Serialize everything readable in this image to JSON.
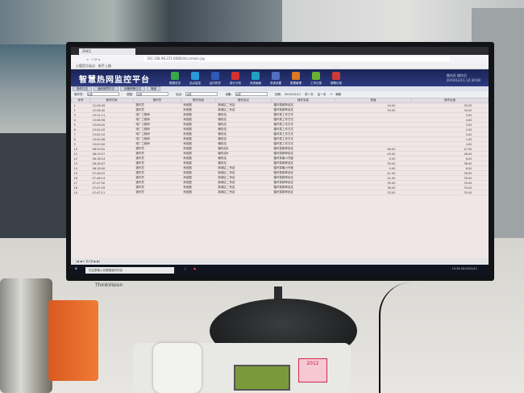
{
  "browser": {
    "tab_title": "ZHCC",
    "url": "192.168.98.251:8080/zhcc/main.jsp",
    "bookmarks": [
      "火狐官方站点",
      "新手上路"
    ]
  },
  "app": {
    "title": "智慧热网监控平台",
    "nav": [
      {
        "label": "数据总览",
        "color": "#3aa64a"
      },
      {
        "label": "站点监控",
        "color": "#2a9ad8"
      },
      {
        "label": "运行历史",
        "color": "#3058b8"
      },
      {
        "label": "统计分析",
        "color": "#d83030"
      },
      {
        "label": "系统画面",
        "color": "#20a0c0"
      },
      {
        "label": "系统设置",
        "color": "#5070c0"
      },
      {
        "label": "数据管理",
        "color": "#e07820"
      },
      {
        "label": "工作记录",
        "color": "#6ab030"
      },
      {
        "label": "报警记录",
        "color": "#d03838"
      }
    ],
    "user": "操作员 操作员",
    "datetime": "2019/12/11 12:30:00"
  },
  "subtabs": [
    "操作日志",
    "通信故障日志",
    "设备报警日志",
    "等级"
  ],
  "filters": {
    "operator_label": "操作员:",
    "operator": "全部",
    "scope_label": "范围:",
    "scope": "全部",
    "site_label": "站点:",
    "site": "全部",
    "device_label": "设备:",
    "device": "全部",
    "date_label": "日期:",
    "date": "2019/12/11",
    "prev": "前一天",
    "next": "后一天",
    "refresh": "刷新"
  },
  "table": {
    "columns": [
      "序号",
      "操作时间",
      "操作员",
      "操作页面",
      "操作站点",
      "操作变量",
      "原值",
      "操作后值"
    ],
    "rows": [
      [
        "1",
        "12:26:49",
        "操作员",
        "系统图",
        "新城区二号站",
        "循环泵频率设定",
        "34.00",
        "35.00"
      ],
      [
        "2",
        "12:26:42",
        "操作员",
        "系统图",
        "新城区二号站",
        "循环泵频率设定",
        "33.00",
        "34.00"
      ],
      [
        "3",
        "15:12:11",
        "电厂工程师",
        "系统图",
        "输热站",
        "循环泵工作方式",
        "",
        "3.00"
      ],
      [
        "4",
        "15:08:56",
        "电厂工程师",
        "系统图",
        "输热站",
        "循环泵工作方式",
        "",
        "4.00"
      ],
      [
        "5",
        "15:06:20",
        "电厂工程师",
        "系统图",
        "输热站",
        "循环泵工作方式",
        "",
        "3.00"
      ],
      [
        "6",
        "15:04:20",
        "电厂工程师",
        "系统图",
        "输热站",
        "循环泵工作方式",
        "",
        "2.00"
      ],
      [
        "7",
        "15:02:10",
        "电厂工程师",
        "系统图",
        "输热站",
        "循环泵工作方式",
        "",
        "4.00"
      ],
      [
        "8",
        "15:00:56",
        "电厂工程师",
        "系统图",
        "输热站",
        "循环泵工作方式",
        "",
        "1.00"
      ],
      [
        "9",
        "15:00:00",
        "电厂工程师",
        "系统图",
        "输热站",
        "循环泵工作方式",
        "",
        "4.00"
      ],
      [
        "10",
        "08:29:52",
        "操作员",
        "系统图",
        "输热站B",
        "循环泵频率设定",
        "46.00",
        "47.00"
      ],
      [
        "11",
        "08:19:27",
        "操作员",
        "系统图",
        "输热站B",
        "循环泵频率设定",
        "45.00",
        "46.00"
      ],
      [
        "12",
        "08:18:14",
        "操作员",
        "系统图",
        "输热站",
        "循环泵最小开度",
        "5.00",
        "6.00"
      ],
      [
        "13",
        "08:18:07",
        "操作员",
        "系统图",
        "输热站",
        "循环泵频率设定",
        "39.00",
        "38.00"
      ],
      [
        "14",
        "08:18:00",
        "操作员",
        "系统图",
        "新城区二号站",
        "循环泵最小开度",
        "5.00",
        "6.00"
      ],
      [
        "15",
        "07:48:22",
        "操作员",
        "系统图",
        "新城区二号站",
        "循环泵频率设定",
        "41.00",
        "39.00"
      ],
      [
        "16",
        "07:48:14",
        "操作员",
        "系统图",
        "新城区二号站",
        "循环泵频率设定",
        "41.00",
        "39.00"
      ],
      [
        "17",
        "07:47:50",
        "操作员",
        "系统图",
        "新城区二号站",
        "循环泵频率设定",
        "35.00",
        "33.00"
      ],
      [
        "18",
        "07:47:29",
        "操作员",
        "系统图",
        "新城区二号站",
        "循环泵频率设定",
        "38.00",
        "33.00"
      ],
      [
        "19",
        "07:47:11",
        "操作员",
        "系统图",
        "新城区二号站",
        "循环泵频率设定",
        "33.00",
        "33.00"
      ]
    ]
  },
  "pager": {
    "page": "1",
    "total": "共1页"
  },
  "taskbar": {
    "search_placeholder": "在这里输入你要搜索的内容",
    "clock": "12:30 2019/12/11"
  },
  "monitor_brand": "ThinkVision",
  "sticker": "2012"
}
